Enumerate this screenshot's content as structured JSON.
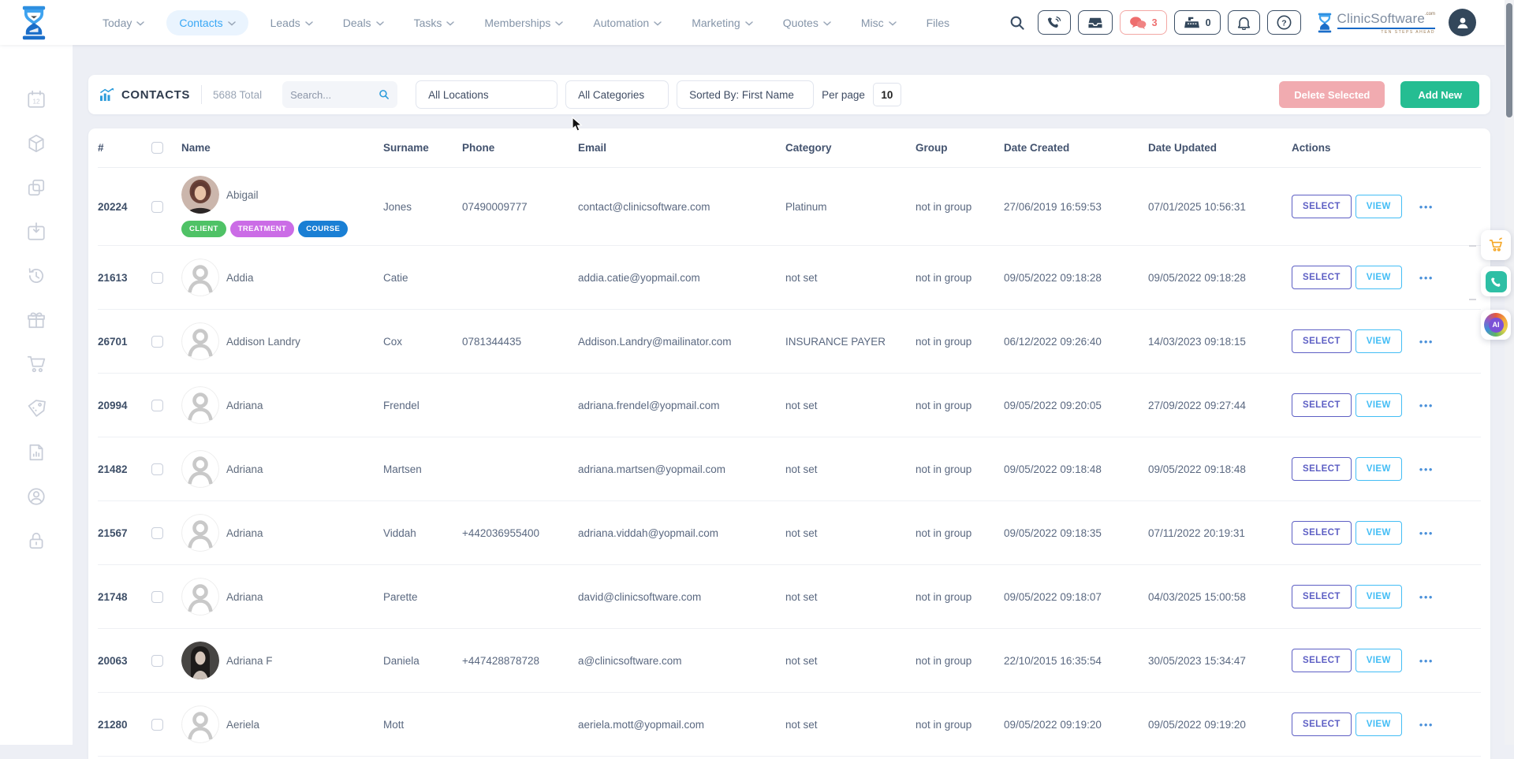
{
  "topnav": {
    "items": [
      {
        "label": "Today",
        "caret": true,
        "active": false
      },
      {
        "label": "Contacts",
        "caret": true,
        "active": true
      },
      {
        "label": "Leads",
        "caret": true,
        "active": false
      },
      {
        "label": "Deals",
        "caret": true,
        "active": false
      },
      {
        "label": "Tasks",
        "caret": true,
        "active": false
      },
      {
        "label": "Memberships",
        "caret": true,
        "active": false
      },
      {
        "label": "Automation",
        "caret": true,
        "active": false
      },
      {
        "label": "Marketing",
        "caret": true,
        "active": false
      },
      {
        "label": "Quotes",
        "caret": true,
        "active": false
      },
      {
        "label": "Misc",
        "caret": true,
        "active": false
      },
      {
        "label": "Files",
        "caret": false,
        "active": false
      }
    ],
    "icons": [
      "search",
      "phone",
      "inbox",
      "chat",
      "register",
      "bell",
      "help"
    ],
    "chat_count": "3",
    "register_count": "0",
    "brand": {
      "name": "ClinicSoftware",
      "tld": ".com",
      "tagline": "TEN STEPS AHEAD"
    }
  },
  "sidebar": {
    "icons": [
      "calendar",
      "package",
      "duplicate",
      "calendar-import",
      "history",
      "gift",
      "cart",
      "price-tag",
      "report",
      "account",
      "lock"
    ]
  },
  "toolbar": {
    "title": "CONTACTS",
    "total": "5688 Total",
    "search_placeholder": "Search...",
    "location_filter": "All Locations",
    "category_filter": "All Categories",
    "sort_filter": "Sorted By: First Name",
    "per_page_label": "Per page",
    "per_page_value": "10",
    "delete_button": "Delete Selected",
    "add_button": "Add New"
  },
  "table": {
    "headers": {
      "id": "#",
      "name": "Name",
      "surname": "Surname",
      "phone": "Phone",
      "email": "Email",
      "category": "Category",
      "group": "Group",
      "created": "Date Created",
      "updated": "Date Updated",
      "actions": "Actions"
    },
    "actions": {
      "select": "SELECT",
      "view": "VIEW",
      "more": "•••"
    },
    "tag_colors": {
      "CLIENT": "#4fc266",
      "TREATMENT": "#cb6ce6",
      "COURSE": "#1a7fd4"
    },
    "rows": [
      {
        "id": "20224",
        "name": "Abigail",
        "avatar": "photo-1",
        "tags": [
          "CLIENT",
          "TREATMENT",
          "COURSE"
        ],
        "surname": "Jones",
        "phone": "07490009777",
        "email": "contact@clinicsoftware.com",
        "category": "Platinum",
        "group": "not in group",
        "created": "27/06/2019 16:59:53",
        "updated": "07/01/2025 10:56:31"
      },
      {
        "id": "21613",
        "name": "Addia",
        "avatar": "placeholder",
        "tags": [],
        "surname": "Catie",
        "phone": "",
        "email": "addia.catie@yopmail.com",
        "category": "not set",
        "group": "not in group",
        "created": "09/05/2022 09:18:28",
        "updated": "09/05/2022 09:18:28"
      },
      {
        "id": "26701",
        "name": "Addison Landry",
        "avatar": "placeholder",
        "tags": [],
        "surname": "Cox",
        "phone": "0781344435",
        "email": "Addison.Landry@mailinator.com",
        "category": "INSURANCE PAYER",
        "group": "not in group",
        "created": "06/12/2022 09:26:40",
        "updated": "14/03/2023 09:18:15"
      },
      {
        "id": "20994",
        "name": "Adriana",
        "avatar": "placeholder",
        "tags": [],
        "surname": "Frendel",
        "phone": "",
        "email": "adriana.frendel@yopmail.com",
        "category": "not set",
        "group": "not in group",
        "created": "09/05/2022 09:20:05",
        "updated": "27/09/2022 09:27:44"
      },
      {
        "id": "21482",
        "name": "Adriana",
        "avatar": "placeholder",
        "tags": [],
        "surname": "Martsen",
        "phone": "",
        "email": "adriana.martsen@yopmail.com",
        "category": "not set",
        "group": "not in group",
        "created": "09/05/2022 09:18:48",
        "updated": "09/05/2022 09:18:48"
      },
      {
        "id": "21567",
        "name": "Adriana",
        "avatar": "placeholder",
        "tags": [],
        "surname": "Viddah",
        "phone": "+442036955400",
        "email": "adriana.viddah@yopmail.com",
        "category": "not set",
        "group": "not in group",
        "created": "09/05/2022 09:18:35",
        "updated": "07/11/2022 20:19:31"
      },
      {
        "id": "21748",
        "name": "Adriana",
        "avatar": "placeholder",
        "tags": [],
        "surname": "Parette",
        "phone": "",
        "email": "david@clinicsoftware.com",
        "category": "not set",
        "group": "not in group",
        "created": "09/05/2022 09:18:07",
        "updated": "04/03/2025 15:00:58"
      },
      {
        "id": "20063",
        "name": "Adriana F",
        "avatar": "photo-2",
        "tags": [],
        "surname": "Daniela",
        "phone": "+447428878728",
        "email": "a@clinicsoftware.com",
        "category": "not set",
        "group": "not in group",
        "created": "22/10/2015 16:35:54",
        "updated": "30/05/2023 15:34:47"
      },
      {
        "id": "21280",
        "name": "Aeriela",
        "avatar": "placeholder",
        "tags": [],
        "surname": "Mott",
        "phone": "",
        "email": "aeriela.mott@yopmail.com",
        "category": "not set",
        "group": "not in group",
        "created": "09/05/2022 09:19:20",
        "updated": "09/05/2022 09:19:20"
      }
    ]
  },
  "floating": {
    "icons": [
      "cart",
      "whatsapp",
      "ai"
    ],
    "ai_label": "AI"
  }
}
